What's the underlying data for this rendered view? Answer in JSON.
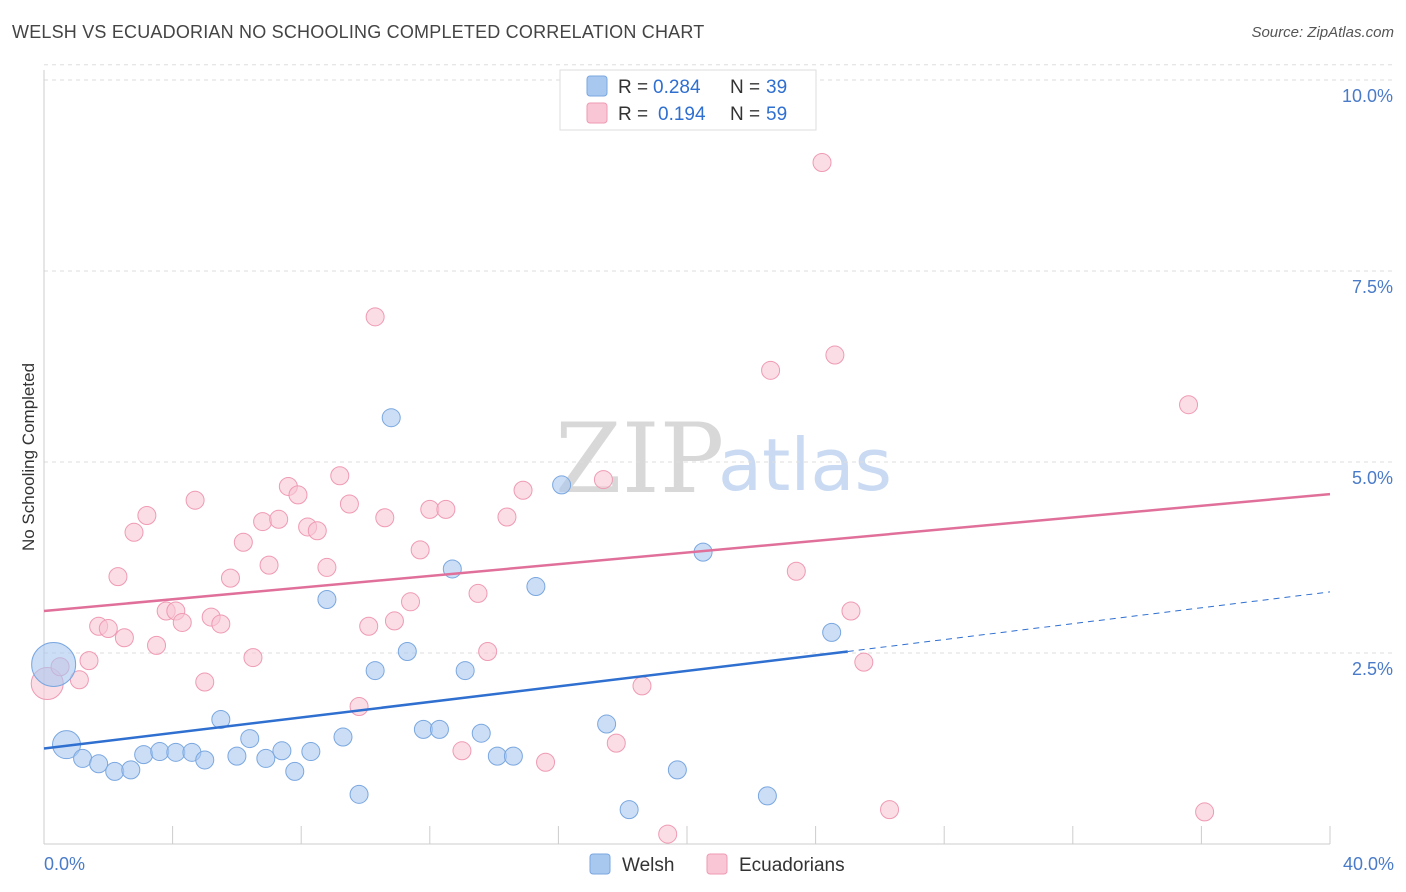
{
  "header": {
    "title": "WELSH VS ECUADORIAN NO SCHOOLING COMPLETED CORRELATION CHART",
    "source": "Source: ZipAtlas.com"
  },
  "watermark": {
    "zip": "ZIP",
    "atlas": "atlas"
  },
  "legend_top": {
    "welsh": {
      "r_label": "R =",
      "r_value": "0.284",
      "n_label": "N =",
      "n_value": "39"
    },
    "ecuadorians": {
      "r_label": "R =",
      "r_value": "0.194",
      "n_label": "N =",
      "n_value": "59"
    }
  },
  "chart_data": {
    "type": "scatter",
    "title": "WELSH VS ECUADORIAN NO SCHOOLING COMPLETED CORRELATION CHART",
    "xlabel": "",
    "ylabel": "No Schooling Completed",
    "xlim": [
      0,
      40
    ],
    "ylim": [
      0,
      10.5
    ],
    "x_ticks": [
      "0.0%",
      "40.0%"
    ],
    "y_ticks": [
      {
        "value": 2.5,
        "label": "2.5%"
      },
      {
        "value": 5.0,
        "label": "5.0%"
      },
      {
        "value": 7.5,
        "label": "7.5%"
      },
      {
        "value": 10.0,
        "label": "10.0%"
      }
    ],
    "grid": true,
    "legend_position": "top-center",
    "series": [
      {
        "name": "Welsh",
        "color": "#a9c8f0",
        "stroke": "#7aa7e0",
        "trend_color": "#2f6fd0",
        "trend": {
          "x0": 0,
          "y0": 1.25,
          "x1": 25,
          "y1": 2.52,
          "dash_to_x": 40,
          "dash_to_y": 3.3
        },
        "points": [
          [
            0.3,
            2.35,
            22
          ],
          [
            0.7,
            1.3,
            14
          ],
          [
            1.2,
            1.12,
            9
          ],
          [
            1.7,
            1.05,
            9
          ],
          [
            2.2,
            0.95,
            9
          ],
          [
            2.7,
            0.97,
            9
          ],
          [
            3.1,
            1.17,
            9
          ],
          [
            3.6,
            1.21,
            9
          ],
          [
            4.1,
            1.2,
            9
          ],
          [
            4.6,
            1.2,
            9
          ],
          [
            5.0,
            1.1,
            9
          ],
          [
            5.5,
            1.63,
            9
          ],
          [
            6.0,
            1.15,
            9
          ],
          [
            6.4,
            1.38,
            9
          ],
          [
            6.9,
            1.12,
            9
          ],
          [
            7.4,
            1.22,
            9
          ],
          [
            7.8,
            0.95,
            9
          ],
          [
            8.3,
            1.21,
            9
          ],
          [
            8.8,
            3.2,
            9
          ],
          [
            9.3,
            1.4,
            9
          ],
          [
            9.8,
            0.65,
            9
          ],
          [
            10.3,
            2.27,
            9
          ],
          [
            10.8,
            5.58,
            9
          ],
          [
            11.3,
            2.52,
            9
          ],
          [
            11.8,
            1.5,
            9
          ],
          [
            12.3,
            1.5,
            9
          ],
          [
            12.7,
            3.6,
            9
          ],
          [
            13.1,
            2.27,
            9
          ],
          [
            13.6,
            1.45,
            9
          ],
          [
            14.1,
            1.15,
            9
          ],
          [
            14.6,
            1.15,
            9
          ],
          [
            15.3,
            3.37,
            9
          ],
          [
            16.1,
            4.7,
            9
          ],
          [
            17.5,
            1.57,
            9
          ],
          [
            18.2,
            0.45,
            9
          ],
          [
            19.7,
            0.97,
            9
          ],
          [
            20.5,
            3.82,
            9
          ],
          [
            22.5,
            0.63,
            9
          ],
          [
            24.5,
            2.77,
            9
          ]
        ]
      },
      {
        "name": "Ecuadorians",
        "color": "#f8c6d4",
        "stroke": "#ef9ab3",
        "trend_color": "#e0709a",
        "trend": {
          "x0": 0,
          "y0": 3.05,
          "x1": 40,
          "y1": 4.58
        },
        "points": [
          [
            0.1,
            2.1,
            16
          ],
          [
            0.5,
            2.32,
            9
          ],
          [
            1.1,
            2.15,
            9
          ],
          [
            1.4,
            2.4,
            9
          ],
          [
            1.7,
            2.85,
            9
          ],
          [
            2.0,
            2.82,
            9
          ],
          [
            2.3,
            3.5,
            9
          ],
          [
            2.5,
            2.7,
            9
          ],
          [
            2.8,
            4.08,
            9
          ],
          [
            3.2,
            4.3,
            9
          ],
          [
            3.5,
            2.6,
            9
          ],
          [
            3.8,
            3.05,
            9
          ],
          [
            4.1,
            3.05,
            9
          ],
          [
            4.3,
            2.9,
            9
          ],
          [
            4.7,
            4.5,
            9
          ],
          [
            5.0,
            2.12,
            9
          ],
          [
            5.2,
            2.97,
            9
          ],
          [
            5.5,
            2.88,
            9
          ],
          [
            5.8,
            3.48,
            9
          ],
          [
            6.2,
            3.95,
            9
          ],
          [
            6.5,
            2.44,
            9
          ],
          [
            6.8,
            4.22,
            9
          ],
          [
            7.0,
            3.65,
            9
          ],
          [
            7.3,
            4.25,
            9
          ],
          [
            7.6,
            4.68,
            9
          ],
          [
            7.9,
            4.57,
            9
          ],
          [
            8.2,
            4.15,
            9
          ],
          [
            8.5,
            4.1,
            9
          ],
          [
            8.8,
            3.62,
            9
          ],
          [
            9.2,
            4.82,
            9
          ],
          [
            9.5,
            4.45,
            9
          ],
          [
            9.8,
            1.8,
            9
          ],
          [
            10.1,
            2.85,
            9
          ],
          [
            10.3,
            6.9,
            9
          ],
          [
            10.6,
            4.27,
            9
          ],
          [
            10.9,
            2.92,
            9
          ],
          [
            11.4,
            3.17,
            9
          ],
          [
            11.7,
            3.85,
            9
          ],
          [
            12.0,
            4.38,
            9
          ],
          [
            12.5,
            4.38,
            9
          ],
          [
            13.0,
            1.22,
            9
          ],
          [
            13.5,
            3.28,
            9
          ],
          [
            13.8,
            2.52,
            9
          ],
          [
            14.4,
            4.28,
            9
          ],
          [
            14.9,
            4.63,
            9
          ],
          [
            15.6,
            1.07,
            9
          ],
          [
            17.4,
            4.77,
            9
          ],
          [
            17.8,
            1.32,
            9
          ],
          [
            18.6,
            2.07,
            9
          ],
          [
            19.4,
            0.13,
            9
          ],
          [
            22.6,
            6.2,
            9
          ],
          [
            23.4,
            3.57,
            9
          ],
          [
            24.2,
            8.92,
            9
          ],
          [
            24.6,
            6.4,
            9
          ],
          [
            25.1,
            3.05,
            9
          ],
          [
            25.5,
            2.38,
            9
          ],
          [
            26.3,
            0.45,
            9
          ],
          [
            35.6,
            5.75,
            9
          ],
          [
            36.1,
            0.42,
            9
          ]
        ]
      }
    ]
  }
}
